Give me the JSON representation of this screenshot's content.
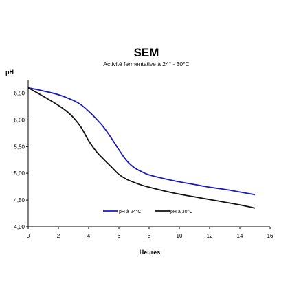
{
  "chart_data": {
    "type": "line",
    "title": "SEM",
    "subtitle": "Activité fermentative à 24° - 30°C",
    "xlabel": "Heures",
    "ylabel": "pH",
    "xlim": [
      0,
      16
    ],
    "ylim": [
      4.0,
      6.75
    ],
    "x_ticks": [
      "0",
      "2",
      "4",
      "6",
      "8",
      "10",
      "12",
      "14",
      "16"
    ],
    "y_ticks": [
      "4,00",
      "4,50",
      "5,00",
      "5,50",
      "6,00",
      "6,50"
    ],
    "grid": false,
    "legend_position": "bottom-center",
    "series": [
      {
        "name": "pH à 24°C",
        "color": "#1a1ab8",
        "x": [
          0,
          1,
          2,
          3,
          3.5,
          4,
          4.5,
          5,
          5.5,
          6,
          6.5,
          7,
          7.5,
          8,
          9,
          10,
          11,
          12,
          13,
          14,
          15
        ],
        "y": [
          6.6,
          6.54,
          6.47,
          6.36,
          6.28,
          6.16,
          6.02,
          5.86,
          5.66,
          5.44,
          5.24,
          5.11,
          5.03,
          4.97,
          4.9,
          4.84,
          4.79,
          4.74,
          4.7,
          4.65,
          4.6
        ]
      },
      {
        "name": "pH à 30°C",
        "color": "#111111",
        "x": [
          0,
          1,
          2,
          2.5,
          3,
          3.5,
          4,
          4.5,
          5,
          5.5,
          6,
          6.5,
          7,
          7.5,
          8,
          9,
          10,
          11,
          12,
          13,
          14,
          15
        ],
        "y": [
          6.6,
          6.44,
          6.27,
          6.17,
          6.04,
          5.86,
          5.61,
          5.41,
          5.26,
          5.12,
          4.98,
          4.89,
          4.83,
          4.78,
          4.74,
          4.67,
          4.61,
          4.56,
          4.51,
          4.46,
          4.41,
          4.35
        ]
      }
    ]
  }
}
